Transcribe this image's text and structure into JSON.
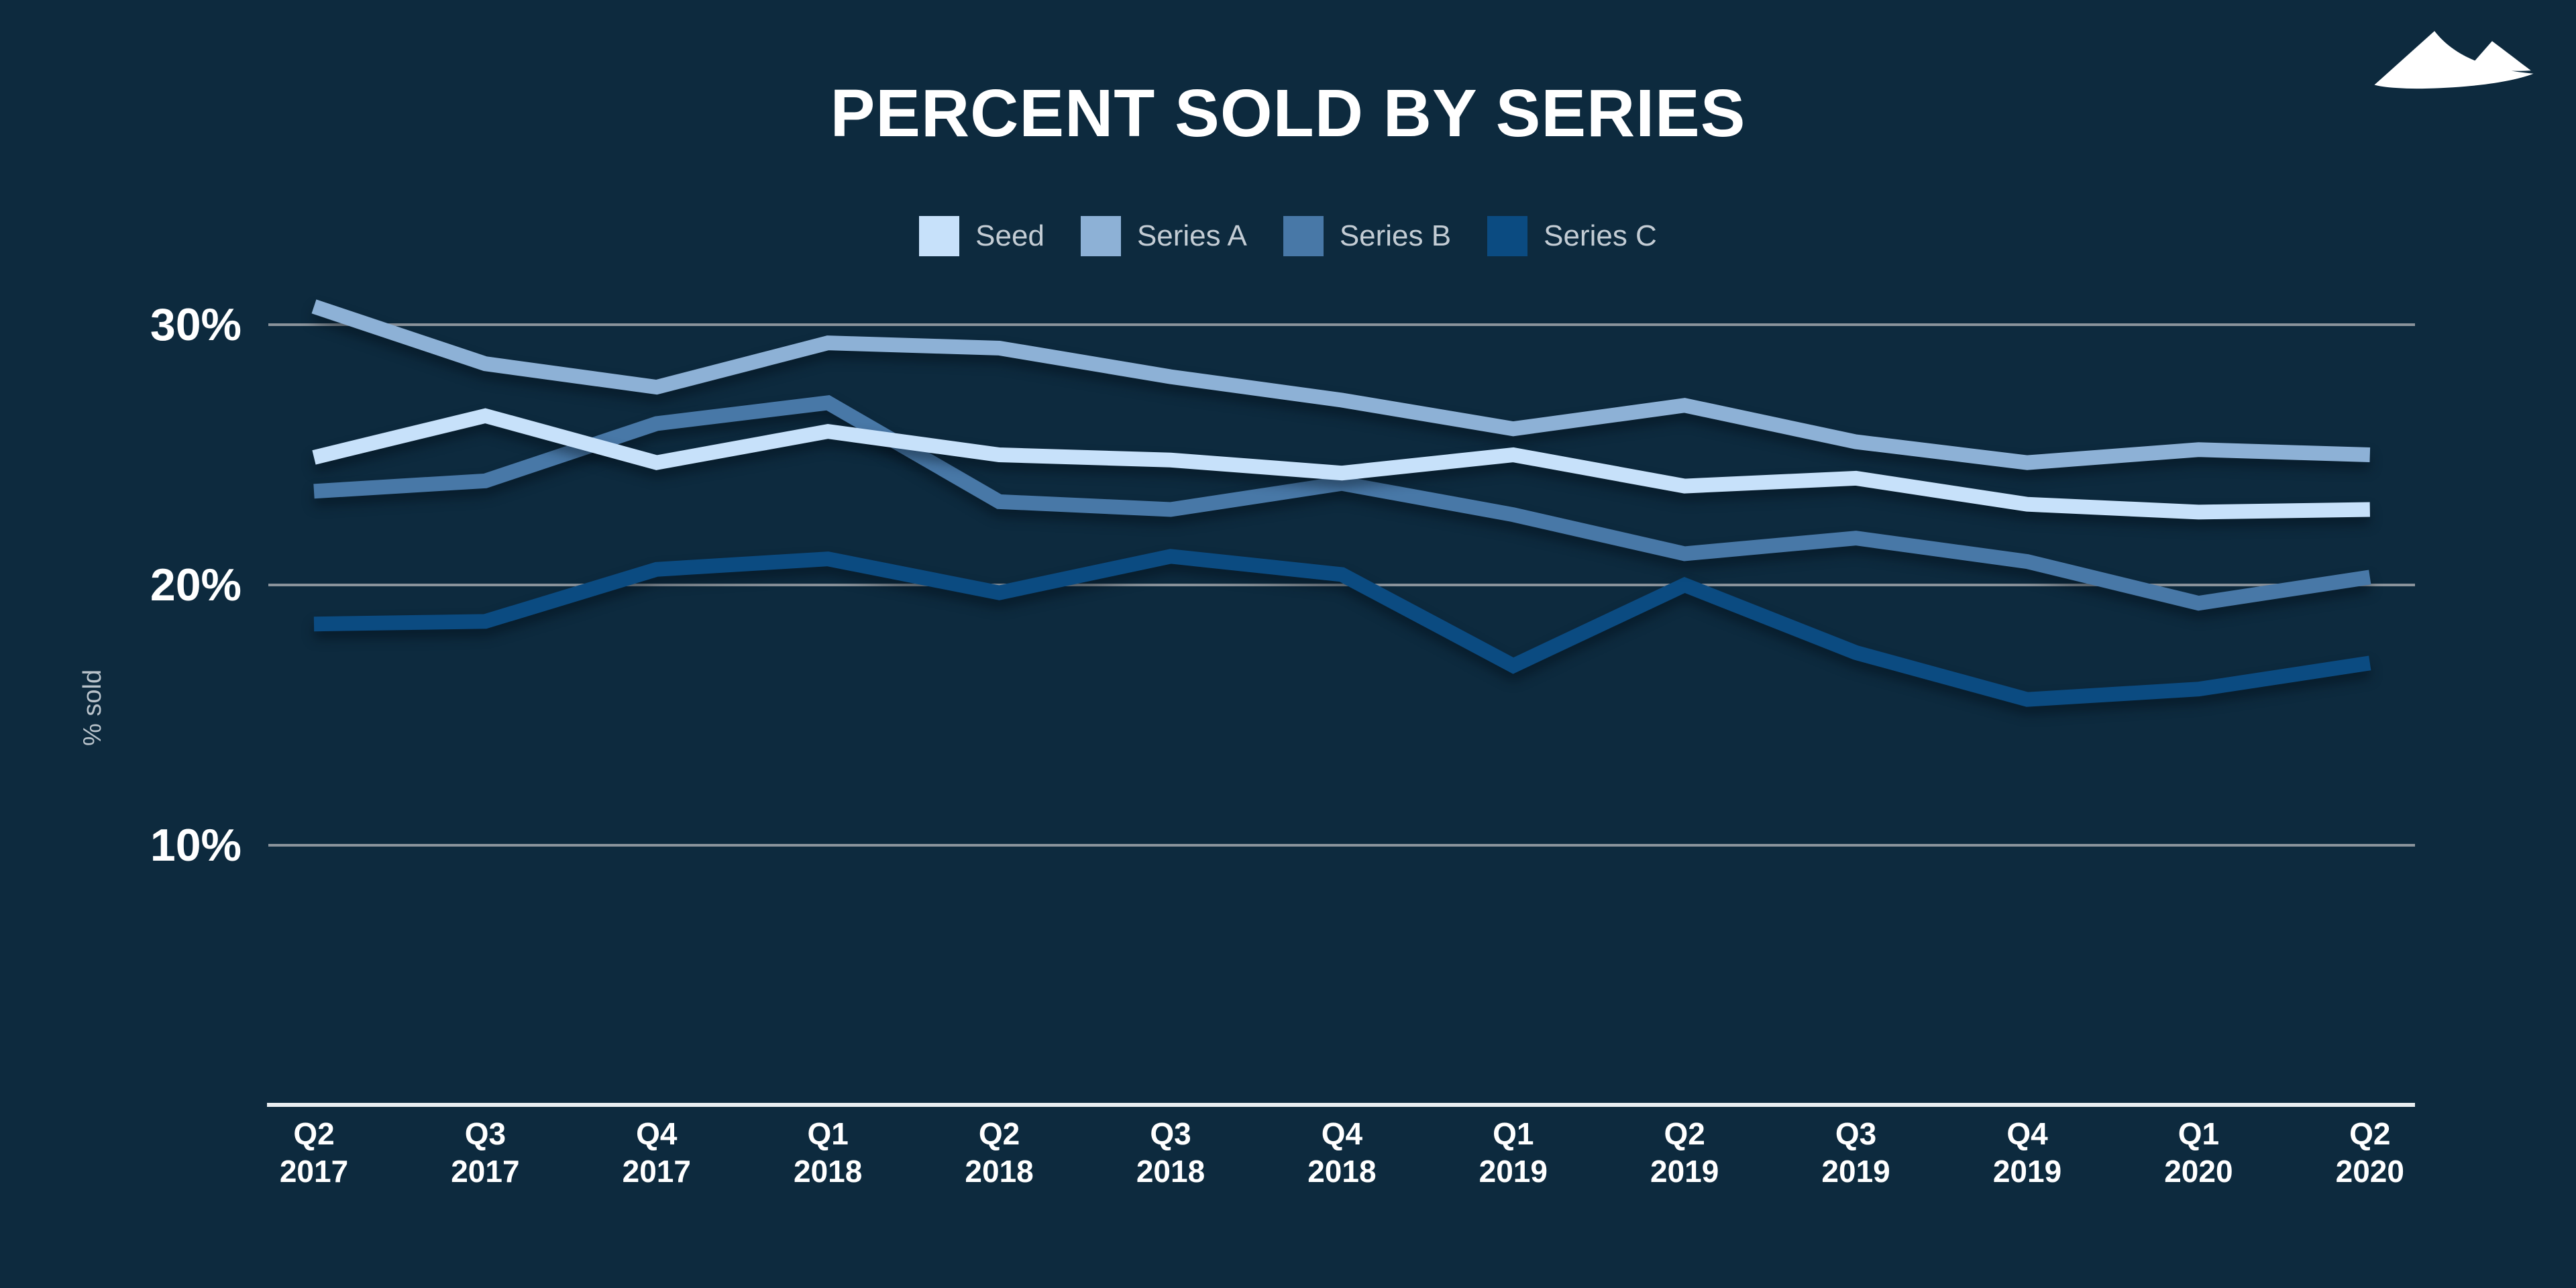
{
  "title": "PERCENT SOLD BY SERIES",
  "colors": {
    "background": "#0d2a3e",
    "grid": "#8a939b",
    "axis_line": "#e9eef1",
    "title_text": "#ffffff",
    "legend_text": "#c3ccd4",
    "tick_text": "#ffffff",
    "y_axis_title_text": "#b9c3cb",
    "logo": "#ffffff"
  },
  "logo": {
    "icon": "mountain-dunes-logo"
  },
  "chart_data": {
    "type": "line",
    "title": "PERCENT SOLD BY SERIES",
    "xlabel": "",
    "ylabel": "% sold",
    "categories": [
      "Q2 2017",
      "Q3 2017",
      "Q4 2017",
      "Q1 2018",
      "Q2 2018",
      "Q3 2018",
      "Q4 2018",
      "Q1 2019",
      "Q2 2019",
      "Q3 2019",
      "Q4 2019",
      "Q1 2020",
      "Q2 2020"
    ],
    "y_ticks": [
      {
        "label": "30%",
        "value": 30
      },
      {
        "label": "20%",
        "value": 20
      },
      {
        "label": "10%",
        "value": 10
      }
    ],
    "ylim": [
      0,
      32
    ],
    "grid": true,
    "legend_position": "top",
    "series": [
      {
        "name": "Seed",
        "color": "#c7e1fa",
        "values": [
          24.9,
          26.5,
          24.7,
          25.9,
          25.0,
          24.8,
          24.3,
          25.0,
          23.8,
          24.1,
          23.1,
          22.8,
          22.9
        ]
      },
      {
        "name": "Series A",
        "color": "#8db1d6",
        "values": [
          30.7,
          28.5,
          27.6,
          29.3,
          29.1,
          28.0,
          27.1,
          26.0,
          26.9,
          25.5,
          24.7,
          25.2,
          25.0
        ]
      },
      {
        "name": "Series B",
        "color": "#4878a7",
        "values": [
          23.6,
          24.0,
          26.2,
          27.0,
          23.2,
          22.9,
          23.9,
          22.7,
          21.2,
          21.8,
          20.9,
          19.3,
          20.3
        ]
      },
      {
        "name": "Series C",
        "color": "#0b4b81",
        "values": [
          18.5,
          18.6,
          20.6,
          21.0,
          19.7,
          21.1,
          20.4,
          16.9,
          20.0,
          17.4,
          15.6,
          16.0,
          17.0
        ]
      }
    ]
  }
}
